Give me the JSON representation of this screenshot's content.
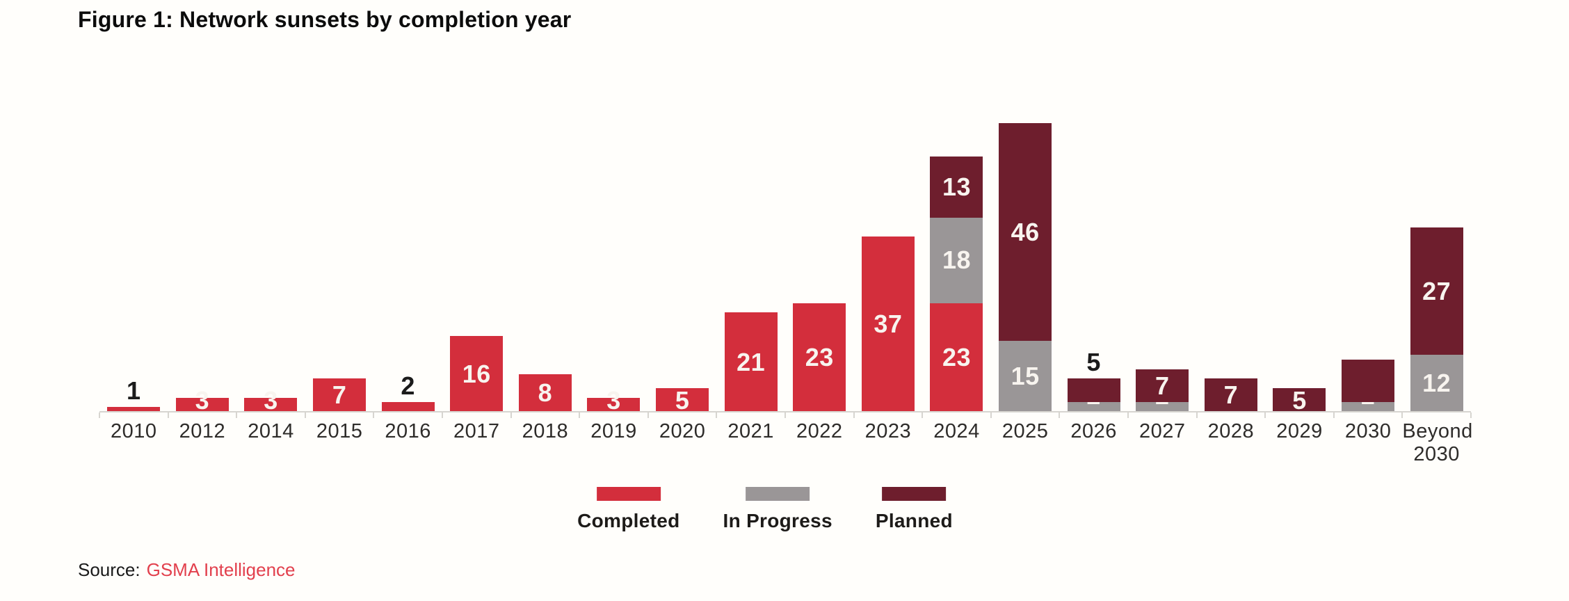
{
  "title": "Figure 1: Network sunsets by completion year",
  "source": {
    "prefix": "Source:",
    "link_text": "GSMA Intelligence",
    "link_color": "#e2404d"
  },
  "colors": {
    "completed": "#d32e3c",
    "in_progress": "#9a9697",
    "planned": "#6e1e2d",
    "value_label_light": "#f8f4ef",
    "value_label_dark": "#1b1b1b",
    "axis": "#d7d5d0",
    "background": "#fffefb"
  },
  "chart_data": {
    "type": "bar",
    "stacked": true,
    "title": "Figure 1: Network sunsets by completion year",
    "xlabel": "",
    "ylabel": "",
    "y_axis_visible": false,
    "grid": false,
    "ylim": [
      0,
      65
    ],
    "legend_position": "bottom-center",
    "categories": [
      "2010",
      "2012",
      "2014",
      "2015",
      "2016",
      "2017",
      "2018",
      "2019",
      "2020",
      "2021",
      "2022",
      "2023",
      "2024",
      "2025",
      "2026",
      "2027",
      "2028",
      "2029",
      "2030",
      "Beyond 2030"
    ],
    "series": [
      {
        "name": "Completed",
        "color": "#d32e3c",
        "values": [
          1,
          3,
          3,
          7,
          2,
          16,
          8,
          3,
          5,
          21,
          23,
          37,
          23,
          0,
          0,
          0,
          0,
          0,
          0,
          0
        ]
      },
      {
        "name": "In Progress",
        "color": "#9a9697",
        "values": [
          0,
          0,
          0,
          0,
          0,
          0,
          0,
          0,
          0,
          0,
          0,
          0,
          18,
          15,
          2,
          2,
          0,
          0,
          2,
          12
        ]
      },
      {
        "name": "Planned",
        "color": "#6e1e2d",
        "values": [
          0,
          0,
          0,
          0,
          0,
          0,
          0,
          0,
          0,
          0,
          0,
          0,
          13,
          46,
          5,
          7,
          7,
          5,
          9,
          27
        ]
      }
    ],
    "label_placement_overrides": {
      "2010|Completed": "above",
      "2016|Completed": "above",
      "2026|Planned": "above",
      "2026|In Progress": "straddle",
      "2027|In Progress": "straddle",
      "2030|In Progress": "straddle",
      "2030|Planned": "none"
    }
  }
}
